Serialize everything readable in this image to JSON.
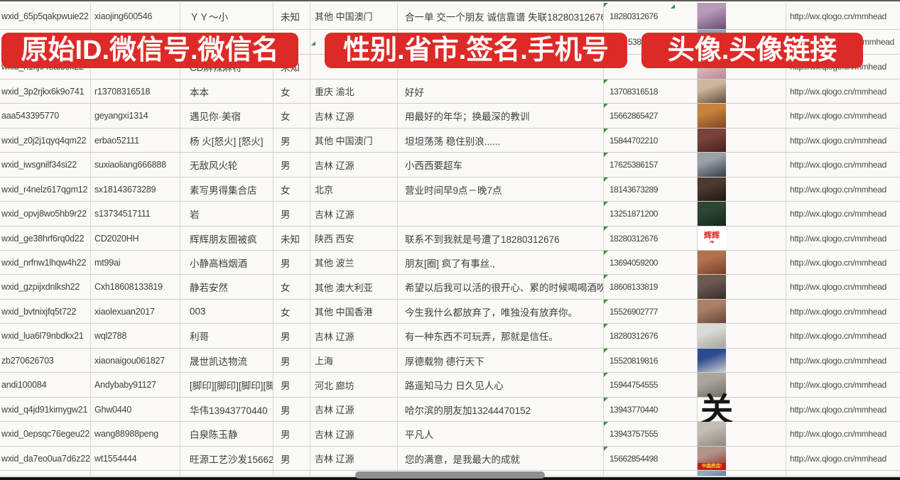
{
  "banners": {
    "left": "原始ID.微信号.微信名",
    "middle": "性别.省市.签名.手机号",
    "right": "头像.头像链接",
    "color": "#dd2a27"
  },
  "scrollbar": {
    "orientation": "horizontal"
  },
  "rows": [
    {
      "id": "wxid_65p5qakpwuie22",
      "wx": "xiaojing600546",
      "name": "ＹＹ～小",
      "gender": "未知",
      "region": "其他 中国澳门",
      "sig": "合一单 交一个朋友 诚信靠谱 失联18280312676",
      "phone": "18280312676",
      "url": "http://wx.qlogo.cn/mmhead",
      "marker": true,
      "avatar": {
        "kind": "photo",
        "desc": "girl-portrait-purple",
        "c1": "#b79ab8",
        "c2": "#6a4e74"
      }
    },
    {
      "id": "",
      "wx": "",
      "name": "",
      "gender": "",
      "region": "",
      "sig": "",
      "phone": "5386",
      "url": "/mmhead",
      "marker": false,
      "frag": true,
      "avatar": {
        "kind": "photo",
        "desc": "partially-hidden-blue",
        "c1": "#8da3c0",
        "c2": "#5f7494"
      }
    },
    {
      "id": "wxid_h1xj048al3ok22",
      "wx": "",
      "name": "CD麻辣麻将",
      "gender": "未知",
      "region": "",
      "sig": "",
      "phone": "",
      "url": "http://wx.qlogo.cn/mmhead",
      "marker": false,
      "avatar": {
        "kind": "photo",
        "desc": "girl-portrait-pink",
        "c1": "#e0bcc4",
        "c2": "#b88a96"
      }
    },
    {
      "id": "wxid_3p2rjkx6k9o741",
      "wx": "r13708316518",
      "name": "本本",
      "gender": "女",
      "region": "重庆 渝北",
      "sig": "好好",
      "phone": "13708316518",
      "url": "http://wx.qlogo.cn/mmhead",
      "marker": true,
      "avatar": {
        "kind": "photo",
        "desc": "dark-hair-girl-beige",
        "c1": "#cdb69c",
        "c2": "#5f4e40"
      }
    },
    {
      "id": "aaa543395770",
      "wx": "geyangxi1314",
      "name": "遇见你·美宿",
      "gender": "女",
      "region": "吉林 辽源",
      "sig": "用最好的年华；换最深的教训",
      "phone": "15662865427",
      "url": "http://wx.qlogo.cn/mmhead",
      "marker": true,
      "avatar": {
        "kind": "photo",
        "desc": "orange-flowers",
        "c1": "#c9823e",
        "c2": "#7d4520"
      }
    },
    {
      "id": "wxid_z0j2j1qyq4qm22",
      "wx": "erbao52111",
      "name": "杨 火[怒火] [怒火]",
      "gender": "男",
      "region": "其他 中国澳门",
      "sig": "坦坦荡荡 稳住别浪......",
      "phone": "15844702210",
      "url": "http://wx.qlogo.cn/mmhead",
      "marker": true,
      "avatar": {
        "kind": "photo",
        "desc": "dark-red-figures",
        "c1": "#7c423a",
        "c2": "#46231e"
      }
    },
    {
      "id": "wxid_iwsgnilf34si22",
      "wx": "suxiaoliang666888",
      "name": "无敌风火轮",
      "gender": "男",
      "region": "吉林 辽源",
      "sig": "小西西要超车",
      "phone": "17625386157",
      "url": "http://wx.qlogo.cn/mmhead",
      "marker": true,
      "avatar": {
        "kind": "photo",
        "desc": "boy-in-car",
        "c1": "#9aa0a8",
        "c2": "#383d45"
      }
    },
    {
      "id": "wxid_r4nelz617qgm12",
      "wx": "sx18143673289",
      "name": "素写男得集合店",
      "gender": "女",
      "region": "北京",
      "sig": "营业时间早9点－晚7点",
      "phone": "18143673289",
      "url": "http://wx.qlogo.cn/mmhead",
      "marker": true,
      "avatar": {
        "kind": "photo",
        "desc": "dark-storefront-lights",
        "c1": "#4c3a30",
        "c2": "#201711"
      }
    },
    {
      "id": "wxid_opvj8wo5hb9r22",
      "wx": "s13734517111",
      "name": "岩",
      "gender": "男",
      "region": "吉林 辽源",
      "sig": "",
      "phone": "13251871200",
      "url": "http://wx.qlogo.cn/mmhead",
      "marker": true,
      "avatar": {
        "kind": "photo",
        "desc": "dark-green-road",
        "c1": "#2d4636",
        "c2": "#14271b"
      }
    },
    {
      "id": "wxid_ge38hrf6rq0d22",
      "wx": "CD2020HH",
      "name": "辉辉朋友圈被疯",
      "gender": "未知",
      "region": "陕西 西安",
      "sig": "联系不到我就是号遭了18280312676",
      "phone": "18280312676",
      "url": "http://wx.qlogo.cn/mmhead",
      "marker": true,
      "avatar": {
        "kind": "text",
        "desc": "white-with-red-text",
        "c1": "#ffffff",
        "c2": "#ffffff",
        "label": "辉辉"
      }
    },
    {
      "id": "wxid_nrfnw1lhqw4h22",
      "wx": "mt99ai",
      "name": "小静高档烟酒",
      "gender": "男",
      "region": "其他 波兰",
      "sig": "朋友[圈] 疯了有事丝.,",
      "phone": "13694059200",
      "url": "http://wx.qlogo.cn/mmhead",
      "marker": true,
      "avatar": {
        "kind": "photo",
        "desc": "red-hair-girl",
        "c1": "#b3714f",
        "c2": "#75402a"
      }
    },
    {
      "id": "wxid_gzpijxdnlksh22",
      "wx": "Cxh18608133819",
      "name": "静若安然",
      "gender": "女",
      "region": "其他 澳大利亚",
      "sig": "希望以后我可以活的很开心、累的时候喝喝酒吹吹[",
      "phone": "18608133819",
      "url": "http://wx.qlogo.cn/mmhead",
      "marker": true,
      "avatar": {
        "kind": "photo",
        "desc": "dark-selfie-girl",
        "c1": "#6c5a52",
        "c2": "#382c26"
      }
    },
    {
      "id": "wxid_bvtnixjfq5t722",
      "wx": "xiaolexuan2017",
      "name": "003",
      "gender": "女",
      "region": "其他 中国香港",
      "sig": "今生我什么都放弃了，唯独没有放弃你。",
      "phone": "15526902777",
      "url": "http://wx.qlogo.cn/mmhead",
      "marker": true,
      "avatar": {
        "kind": "photo",
        "desc": "brown-selfie-girl",
        "c1": "#aa8168",
        "c2": "#64463a"
      }
    },
    {
      "id": "wxid_lua6l79nbdkx21",
      "wx": "wql2788",
      "name": "利哥",
      "gender": "男",
      "region": "吉林 辽源",
      "sig": "有一种东西不可玩弄，那就是信任。",
      "phone": "18280312676",
      "url": "http://wx.qlogo.cn/mmhead",
      "marker": true,
      "avatar": {
        "kind": "photo",
        "desc": "person-white-cap",
        "c1": "#dadad6",
        "c2": "#a4a49e"
      }
    },
    {
      "id": "zb270626703",
      "wx": "xiaonaigou061827",
      "name": "晟世凯达物流",
      "gender": "男",
      "region": "上海",
      "sig": "厚德载物 德行天下",
      "phone": "15520819816",
      "url": "http://wx.qlogo.cn/mmhead",
      "marker": true,
      "avatar": {
        "kind": "qr",
        "desc": "blue-logo-qr-code",
        "c1": "#2a4a90",
        "c2": "#cfcfcf"
      }
    },
    {
      "id": "andi100084",
      "wx": "Andybaby91127",
      "name": "[脚印][脚印][脚印][脚印",
      "gender": "男",
      "region": "河北 廊坊",
      "sig": "路遥知马力 日久见人心",
      "phone": "15944754555",
      "url": "http://wx.qlogo.cn/mmhead",
      "marker": true,
      "avatar": {
        "kind": "photo",
        "desc": "gray-steps-people",
        "c1": "#aaa69e",
        "c2": "#726a62"
      }
    },
    {
      "id": "wxid_q4jd91kimygw21",
      "wx": "Ghw0440",
      "name": "华伟13943770440",
      "gender": "男",
      "region": "吉林 辽源",
      "sig": "哈尔滨的朋友加13244470152",
      "phone": "13943770440",
      "url": "http://wx.qlogo.cn/mmhead",
      "marker": true,
      "avatar": {
        "kind": "calligraphy",
        "desc": "black-brush-character",
        "c1": "#ffffff",
        "c2": "#ffffff",
        "label": "关"
      }
    },
    {
      "id": "wxid_0epsqc76egeu22",
      "wx": "wang88988peng",
      "name": "白泉陈玉静",
      "gender": "男",
      "region": "吉林 辽源",
      "sig": "平凡人",
      "phone": "13943757555",
      "url": "http://wx.qlogo.cn/mmhead",
      "marker": true,
      "avatar": {
        "kind": "photo",
        "desc": "gray-walking-person",
        "c1": "#c2beb6",
        "c2": "#8c8880"
      }
    },
    {
      "id": "wxid_da7eo0ua7d6z22",
      "wx": "wt1554444",
      "name": "旺源工艺沙发15662854",
      "gender": "男",
      "region": "吉林 辽源",
      "sig": "您的满意，是我最大的成就",
      "phone": "15662854498",
      "url": "http://wx.qlogo.cn/mmhead",
      "marker": true,
      "avatar": {
        "kind": "redband",
        "desc": "dark-red-product-photo",
        "c1": "#b0948a",
        "c2": "#8a2a20",
        "label": "中国质造!"
      }
    },
    {
      "id": "",
      "wx": "",
      "name": "",
      "gender": "",
      "region": "",
      "sig": "",
      "phone": "",
      "url": "",
      "marker": false,
      "avatar": {
        "kind": "photo",
        "desc": "partially-hidden-blue",
        "c1": "#90a8c2",
        "c2": "#68809c"
      }
    }
  ]
}
